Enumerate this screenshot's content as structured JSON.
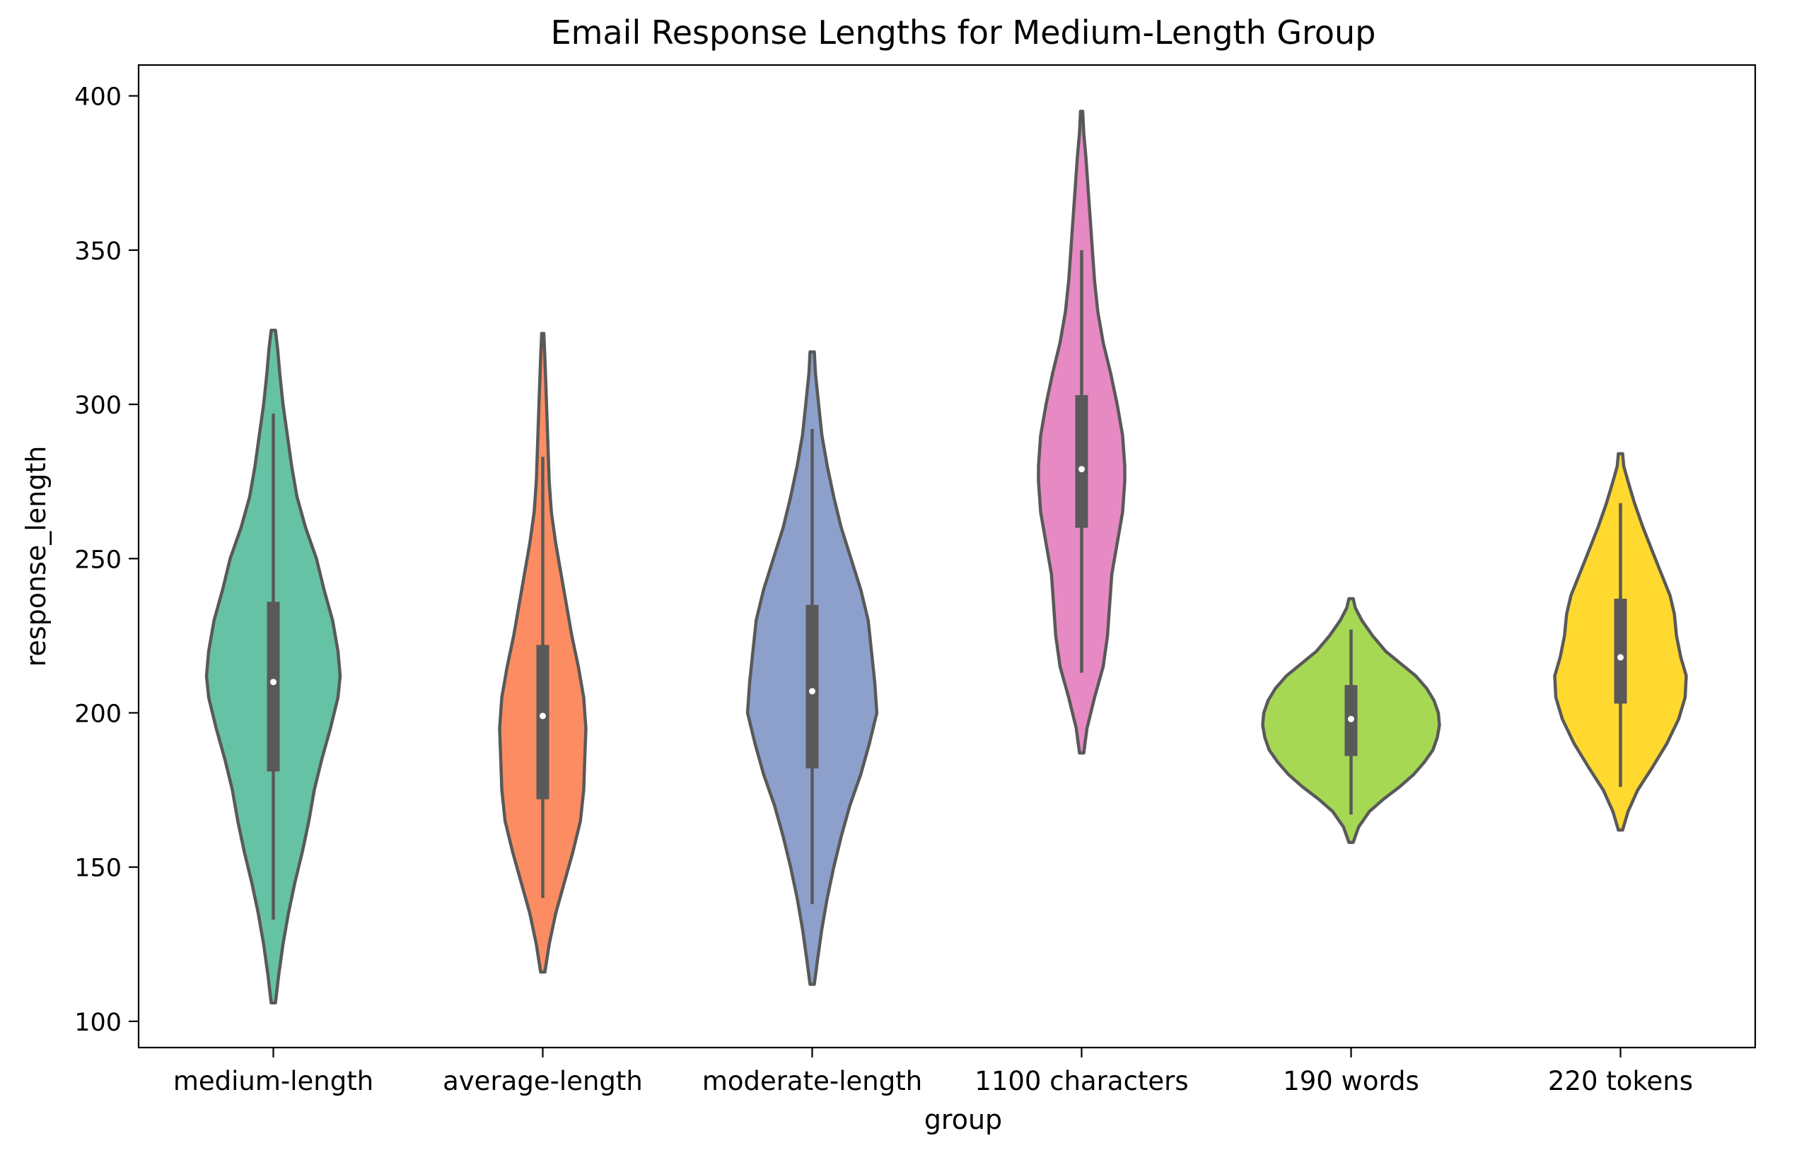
{
  "chart_data": {
    "type": "violin",
    "title": "Email Response Lengths for Medium-Length Group",
    "xlabel": "group",
    "ylabel": "response_length",
    "ylim": [
      91.5,
      410
    ],
    "yticks": [
      100,
      150,
      200,
      250,
      300,
      350,
      400
    ],
    "grid": false,
    "categories": [
      "medium-length",
      "average-length",
      "moderate-length",
      "1100 characters",
      "190 words",
      "220 tokens"
    ],
    "series": [
      {
        "category": "medium-length",
        "color": "#66c2a5",
        "median": 210,
        "q1": 181,
        "q3": 236,
        "whisker_low": 133,
        "whisker_high": 297,
        "density": [
          [
            106,
            0.02
          ],
          [
            115,
            0.05
          ],
          [
            125,
            0.09
          ],
          [
            135,
            0.14
          ],
          [
            145,
            0.2
          ],
          [
            155,
            0.27
          ],
          [
            165,
            0.33
          ],
          [
            175,
            0.38
          ],
          [
            185,
            0.45
          ],
          [
            195,
            0.53
          ],
          [
            205,
            0.6
          ],
          [
            212,
            0.62
          ],
          [
            220,
            0.6
          ],
          [
            230,
            0.55
          ],
          [
            240,
            0.47
          ],
          [
            250,
            0.4
          ],
          [
            260,
            0.3
          ],
          [
            270,
            0.22
          ],
          [
            280,
            0.17
          ],
          [
            290,
            0.13
          ],
          [
            300,
            0.09
          ],
          [
            310,
            0.06
          ],
          [
            318,
            0.04
          ],
          [
            324,
            0.02
          ]
        ]
      },
      {
        "category": "average-length",
        "color": "#fc8d62",
        "median": 199,
        "q1": 172,
        "q3": 222,
        "whisker_low": 140,
        "whisker_high": 283,
        "density": [
          [
            116,
            0.02
          ],
          [
            125,
            0.06
          ],
          [
            135,
            0.12
          ],
          [
            145,
            0.2
          ],
          [
            155,
            0.28
          ],
          [
            165,
            0.35
          ],
          [
            175,
            0.38
          ],
          [
            185,
            0.39
          ],
          [
            195,
            0.4
          ],
          [
            205,
            0.38
          ],
          [
            215,
            0.33
          ],
          [
            225,
            0.27
          ],
          [
            235,
            0.22
          ],
          [
            245,
            0.17
          ],
          [
            255,
            0.12
          ],
          [
            265,
            0.08
          ],
          [
            275,
            0.06
          ],
          [
            285,
            0.05
          ],
          [
            295,
            0.04
          ],
          [
            305,
            0.03
          ],
          [
            315,
            0.02
          ],
          [
            323,
            0.01
          ]
        ]
      },
      {
        "category": "moderate-length",
        "color": "#8da0cb",
        "median": 207,
        "q1": 182,
        "q3": 235,
        "whisker_low": 138,
        "whisker_high": 292,
        "density": [
          [
            112,
            0.02
          ],
          [
            120,
            0.05
          ],
          [
            130,
            0.09
          ],
          [
            140,
            0.14
          ],
          [
            150,
            0.2
          ],
          [
            160,
            0.27
          ],
          [
            170,
            0.35
          ],
          [
            180,
            0.45
          ],
          [
            190,
            0.53
          ],
          [
            200,
            0.6
          ],
          [
            210,
            0.58
          ],
          [
            220,
            0.55
          ],
          [
            230,
            0.52
          ],
          [
            240,
            0.45
          ],
          [
            250,
            0.36
          ],
          [
            260,
            0.27
          ],
          [
            270,
            0.2
          ],
          [
            280,
            0.14
          ],
          [
            290,
            0.09
          ],
          [
            300,
            0.06
          ],
          [
            310,
            0.03
          ],
          [
            317,
            0.02
          ]
        ]
      },
      {
        "category": "1100 characters",
        "color": "#e78ac3",
        "median": 279,
        "q1": 260,
        "q3": 303,
        "whisker_low": 213,
        "whisker_high": 350,
        "density": [
          [
            187,
            0.02
          ],
          [
            195,
            0.05
          ],
          [
            205,
            0.12
          ],
          [
            215,
            0.2
          ],
          [
            225,
            0.24
          ],
          [
            235,
            0.26
          ],
          [
            245,
            0.28
          ],
          [
            255,
            0.33
          ],
          [
            265,
            0.38
          ],
          [
            275,
            0.4
          ],
          [
            280,
            0.4
          ],
          [
            290,
            0.38
          ],
          [
            300,
            0.33
          ],
          [
            310,
            0.27
          ],
          [
            320,
            0.2
          ],
          [
            330,
            0.15
          ],
          [
            340,
            0.12
          ],
          [
            350,
            0.1
          ],
          [
            360,
            0.08
          ],
          [
            370,
            0.06
          ],
          [
            380,
            0.04
          ],
          [
            388,
            0.02
          ],
          [
            395,
            0.01
          ]
        ]
      },
      {
        "category": "190 words",
        "color": "#a6d854",
        "median": 198,
        "q1": 186,
        "q3": 209,
        "whisker_low": 167,
        "whisker_high": 227,
        "density": [
          [
            158,
            0.02
          ],
          [
            163,
            0.07
          ],
          [
            168,
            0.17
          ],
          [
            172,
            0.3
          ],
          [
            176,
            0.45
          ],
          [
            180,
            0.58
          ],
          [
            184,
            0.68
          ],
          [
            188,
            0.76
          ],
          [
            192,
            0.8
          ],
          [
            196,
            0.82
          ],
          [
            200,
            0.81
          ],
          [
            204,
            0.77
          ],
          [
            208,
            0.7
          ],
          [
            212,
            0.6
          ],
          [
            216,
            0.46
          ],
          [
            220,
            0.32
          ],
          [
            225,
            0.2
          ],
          [
            230,
            0.1
          ],
          [
            234,
            0.04
          ],
          [
            237,
            0.02
          ]
        ]
      },
      {
        "category": "220 tokens",
        "color": "#ffd92f",
        "median": 218,
        "q1": 203,
        "q3": 237,
        "whisker_low": 176,
        "whisker_high": 268,
        "density": [
          [
            162,
            0.02
          ],
          [
            168,
            0.07
          ],
          [
            175,
            0.16
          ],
          [
            182,
            0.29
          ],
          [
            190,
            0.43
          ],
          [
            198,
            0.54
          ],
          [
            205,
            0.6
          ],
          [
            212,
            0.61
          ],
          [
            218,
            0.56
          ],
          [
            225,
            0.52
          ],
          [
            232,
            0.5
          ],
          [
            238,
            0.46
          ],
          [
            245,
            0.38
          ],
          [
            252,
            0.3
          ],
          [
            260,
            0.21
          ],
          [
            268,
            0.13
          ],
          [
            275,
            0.07
          ],
          [
            280,
            0.03
          ],
          [
            284,
            0.02
          ]
        ]
      }
    ]
  }
}
